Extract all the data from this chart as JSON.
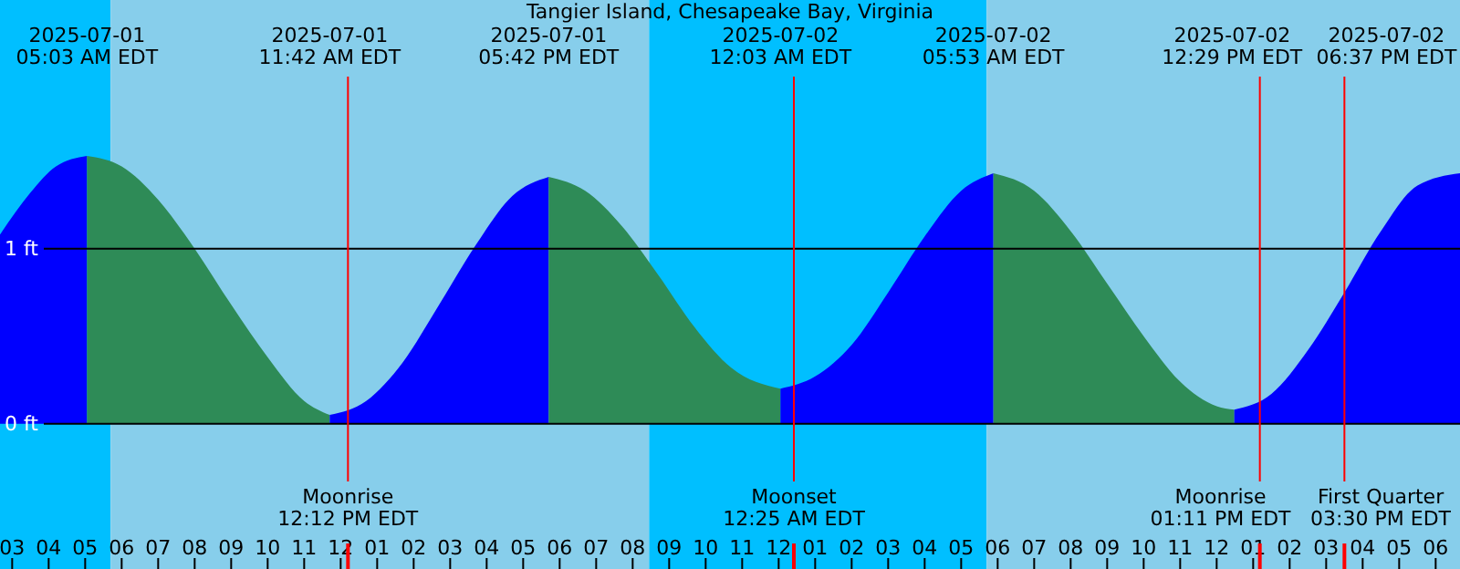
{
  "chart_data": {
    "type": "area",
    "title": "Tangier Island, Chesapeake Bay, Virginia",
    "xlim": [
      "2025-07-01T02:40",
      "2025-07-02T18:40"
    ],
    "ylim": [
      -0.83,
      2.42
    ],
    "xticks": [
      {
        "value": "2025-07-01T03:00",
        "label": "03"
      },
      {
        "value": "2025-07-01T04:00",
        "label": "04"
      },
      {
        "value": "2025-07-01T05:00",
        "label": "05"
      },
      {
        "value": "2025-07-01T06:00",
        "label": "06"
      },
      {
        "value": "2025-07-01T07:00",
        "label": "07"
      },
      {
        "value": "2025-07-01T08:00",
        "label": "08"
      },
      {
        "value": "2025-07-01T09:00",
        "label": "09"
      },
      {
        "value": "2025-07-01T10:00",
        "label": "10"
      },
      {
        "value": "2025-07-01T11:00",
        "label": "11"
      },
      {
        "value": "2025-07-01T12:00",
        "label": "12"
      },
      {
        "value": "2025-07-01T13:00",
        "label": "01"
      },
      {
        "value": "2025-07-01T14:00",
        "label": "02"
      },
      {
        "value": "2025-07-01T15:00",
        "label": "03"
      },
      {
        "value": "2025-07-01T16:00",
        "label": "04"
      },
      {
        "value": "2025-07-01T17:00",
        "label": "05"
      },
      {
        "value": "2025-07-01T18:00",
        "label": "06"
      },
      {
        "value": "2025-07-01T19:00",
        "label": "07"
      },
      {
        "value": "2025-07-01T20:00",
        "label": "08"
      },
      {
        "value": "2025-07-01T21:00",
        "label": "09"
      },
      {
        "value": "2025-07-01T22:00",
        "label": "10"
      },
      {
        "value": "2025-07-01T23:00",
        "label": "11"
      },
      {
        "value": "2025-07-02T00:00",
        "label": "12"
      },
      {
        "value": "2025-07-02T01:00",
        "label": "01"
      },
      {
        "value": "2025-07-02T02:00",
        "label": "02"
      },
      {
        "value": "2025-07-02T03:00",
        "label": "03"
      },
      {
        "value": "2025-07-02T04:00",
        "label": "04"
      },
      {
        "value": "2025-07-02T05:00",
        "label": "05"
      },
      {
        "value": "2025-07-02T06:00",
        "label": "06"
      },
      {
        "value": "2025-07-02T07:00",
        "label": "07"
      },
      {
        "value": "2025-07-02T08:00",
        "label": "08"
      },
      {
        "value": "2025-07-02T09:00",
        "label": "09"
      },
      {
        "value": "2025-07-02T10:00",
        "label": "10"
      },
      {
        "value": "2025-07-02T11:00",
        "label": "11"
      },
      {
        "value": "2025-07-02T12:00",
        "label": "12"
      },
      {
        "value": "2025-07-02T13:00",
        "label": "01"
      },
      {
        "value": "2025-07-02T14:00",
        "label": "02"
      },
      {
        "value": "2025-07-02T15:00",
        "label": "03"
      },
      {
        "value": "2025-07-02T16:00",
        "label": "04"
      },
      {
        "value": "2025-07-02T17:00",
        "label": "05"
      },
      {
        "value": "2025-07-02T18:00",
        "label": "06"
      }
    ],
    "yticks": [
      {
        "value": 0,
        "label": "0 ft"
      },
      {
        "value": 1,
        "label": "1 ft"
      }
    ],
    "grid": "y",
    "series": [
      {
        "color": "#0000ff",
        "x": [
          "2025-07-01T02:40",
          "2025-07-01T03:30",
          "2025-07-01T04:12",
          "2025-07-01T05:03"
        ],
        "values": [
          1.08,
          1.32,
          1.47,
          1.53
        ]
      },
      {
        "color": "#2e8b57",
        "x": [
          "2025-07-01T05:03",
          "2025-07-01T06:00",
          "2025-07-01T07:00",
          "2025-07-01T08:00",
          "2025-07-01T09:00",
          "2025-07-01T10:00",
          "2025-07-01T11:00",
          "2025-07-01T11:42"
        ],
        "values": [
          1.53,
          1.47,
          1.28,
          1.0,
          0.68,
          0.38,
          0.13,
          0.05
        ]
      },
      {
        "color": "#0000ff",
        "x": [
          "2025-07-01T11:42",
          "2025-07-01T12:42",
          "2025-07-01T13:42",
          "2025-07-01T14:42",
          "2025-07-01T15:42",
          "2025-07-01T16:42",
          "2025-07-01T17:42"
        ],
        "values": [
          0.05,
          0.13,
          0.35,
          0.68,
          1.02,
          1.3,
          1.41
        ]
      },
      {
        "color": "#2e8b57",
        "x": [
          "2025-07-01T17:42",
          "2025-07-01T18:42",
          "2025-07-01T19:42",
          "2025-07-01T20:42",
          "2025-07-01T21:42",
          "2025-07-01T22:42",
          "2025-07-02T00:03"
        ],
        "values": [
          1.41,
          1.33,
          1.13,
          0.85,
          0.55,
          0.32,
          0.2
        ]
      },
      {
        "color": "#0000ff",
        "x": [
          "2025-07-02T00:03",
          "2025-07-02T01:00",
          "2025-07-02T02:00",
          "2025-07-02T03:00",
          "2025-07-02T04:00",
          "2025-07-02T05:00",
          "2025-07-02T05:53"
        ],
        "values": [
          0.2,
          0.27,
          0.45,
          0.75,
          1.07,
          1.33,
          1.43
        ]
      },
      {
        "color": "#2e8b57",
        "x": [
          "2025-07-02T05:53",
          "2025-07-02T07:00",
          "2025-07-02T08:00",
          "2025-07-02T09:00",
          "2025-07-02T10:00",
          "2025-07-02T11:00",
          "2025-07-02T12:00",
          "2025-07-02T12:29"
        ],
        "values": [
          1.43,
          1.33,
          1.1,
          0.8,
          0.5,
          0.24,
          0.1,
          0.08
        ]
      },
      {
        "color": "#0000ff",
        "x": [
          "2025-07-02T12:29",
          "2025-07-02T13:30",
          "2025-07-02T14:30",
          "2025-07-02T15:30",
          "2025-07-02T16:30",
          "2025-07-02T17:30",
          "2025-07-02T18:40"
        ],
        "values": [
          0.08,
          0.17,
          0.42,
          0.75,
          1.1,
          1.36,
          1.43
        ]
      }
    ],
    "bands": [
      {
        "axis": "x",
        "from": "2025-07-01T02:40",
        "to": "2025-07-01T05:42",
        "color": "#00bfff"
      },
      {
        "axis": "x",
        "from": "2025-07-01T05:42",
        "to": "2025-07-01T20:27",
        "color": "#87ceeb"
      },
      {
        "axis": "x",
        "from": "2025-07-01T20:27",
        "to": "2025-07-02T05:42",
        "color": "#00bfff"
      },
      {
        "axis": "x",
        "from": "2025-07-02T05:42",
        "to": "2025-07-02T18:40",
        "color": "#87ceeb"
      }
    ],
    "ref_lines": [
      {
        "axis": "x",
        "value": "2025-07-01T12:12",
        "label": "Moonrise\n12:12 PM EDT",
        "color": "#ff0000"
      },
      {
        "axis": "x",
        "value": "2025-07-02T00:25",
        "label": "Moonset\n12:25 AM EDT",
        "color": "#ff0000"
      },
      {
        "axis": "x",
        "value": "2025-07-02T13:11",
        "label": "Moonrise\n01:11 PM EDT",
        "color": "#ff0000"
      },
      {
        "axis": "x",
        "value": "2025-07-02T15:30",
        "label": "First Quarter\n03:30 PM EDT",
        "color": "#ff0000"
      }
    ],
    "annotations": [
      "2025-07-01\n05:03 AM EDT",
      "2025-07-01\n11:42 AM EDT",
      "2025-07-01\n05:42 PM EDT",
      "2025-07-02\n12:03 AM EDT",
      "2025-07-02\n05:53 AM EDT",
      "2025-07-02\n12:29 PM EDT",
      "2025-07-02\n06:37 PM EDT"
    ]
  }
}
